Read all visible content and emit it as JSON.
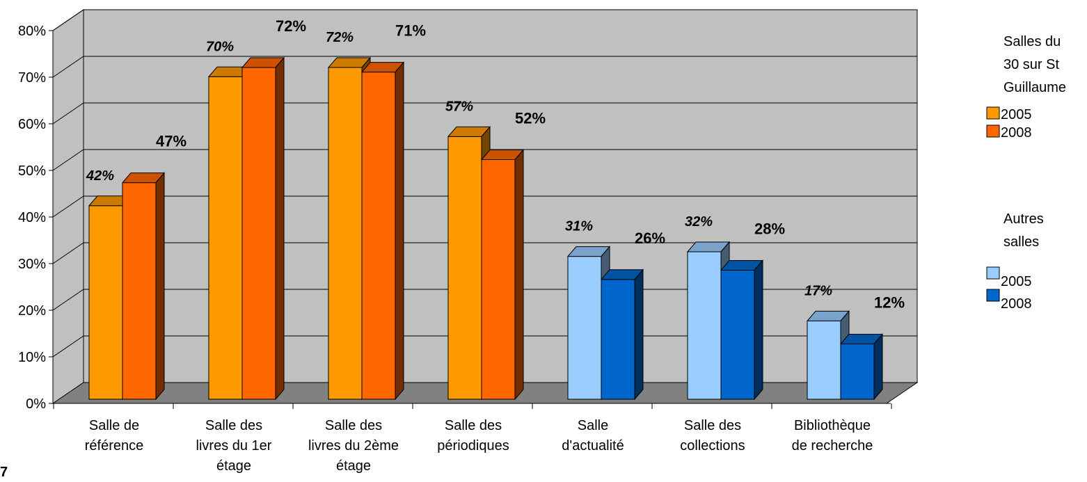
{
  "chart_data": {
    "type": "bar",
    "title": "",
    "xlabel": "",
    "ylabel": "",
    "ylim": [
      0,
      80
    ],
    "ytick_labels": [
      "0%",
      "10%",
      "20%",
      "30%",
      "40%",
      "50%",
      "60%",
      "70%",
      "80%"
    ],
    "grid": true,
    "style": "3d-clustered-columns",
    "categories": [
      [
        "Salle de",
        "référence"
      ],
      [
        "Salle des",
        "livres du 1er",
        "étage"
      ],
      [
        "Salle des",
        "livres du 2ème",
        "étage"
      ],
      [
        "Salle des",
        "périodiques"
      ],
      [
        "Salle",
        "d'actualité"
      ],
      [
        "Salle des",
        "collections"
      ],
      [
        "Bibliothèque",
        "de recherche"
      ]
    ],
    "series": [
      {
        "name": "2005",
        "values": [
          42,
          70,
          72,
          57,
          31,
          32,
          17
        ],
        "labels": [
          "42%",
          "70%",
          "72%",
          "57%",
          "31%",
          "32%",
          "17%"
        ]
      },
      {
        "name": "2008",
        "values": [
          47,
          72,
          71,
          52,
          26,
          28,
          12
        ],
        "labels": [
          "47%",
          "72%",
          "71%",
          "52%",
          "26%",
          "28%",
          "12%"
        ]
      }
    ],
    "groups": [
      {
        "name": [
          "Salles du",
          "30 sur St",
          "Guillaume"
        ],
        "categories": [
          0,
          1,
          2,
          3
        ],
        "colors": {
          "2005": "#FF9900",
          "2008": "#FF6600"
        }
      },
      {
        "name": [
          "Autres",
          "salles"
        ],
        "categories": [
          4,
          5,
          6
        ],
        "colors": {
          "2005": "#99CCFF",
          "2008": "#0066CC"
        }
      }
    ],
    "legend": {
      "position": "right",
      "sections": [
        {
          "title": [
            "Salles du",
            "30 sur St",
            "Guillaume"
          ],
          "items": [
            {
              "label": "2005",
              "color": "#FF9900"
            },
            {
              "label": "2008",
              "color": "#FF6600"
            }
          ]
        },
        {
          "title": [
            "Autres",
            "salles"
          ],
          "items": [
            {
              "label": "2005",
              "color": "#99CCFF"
            },
            {
              "label": "2008",
              "color": "#0066CC"
            }
          ]
        }
      ]
    },
    "colors": {
      "wall": "#C0C0C0",
      "floor": "#808080",
      "gridline": "#000000"
    }
  },
  "page_number": "7"
}
